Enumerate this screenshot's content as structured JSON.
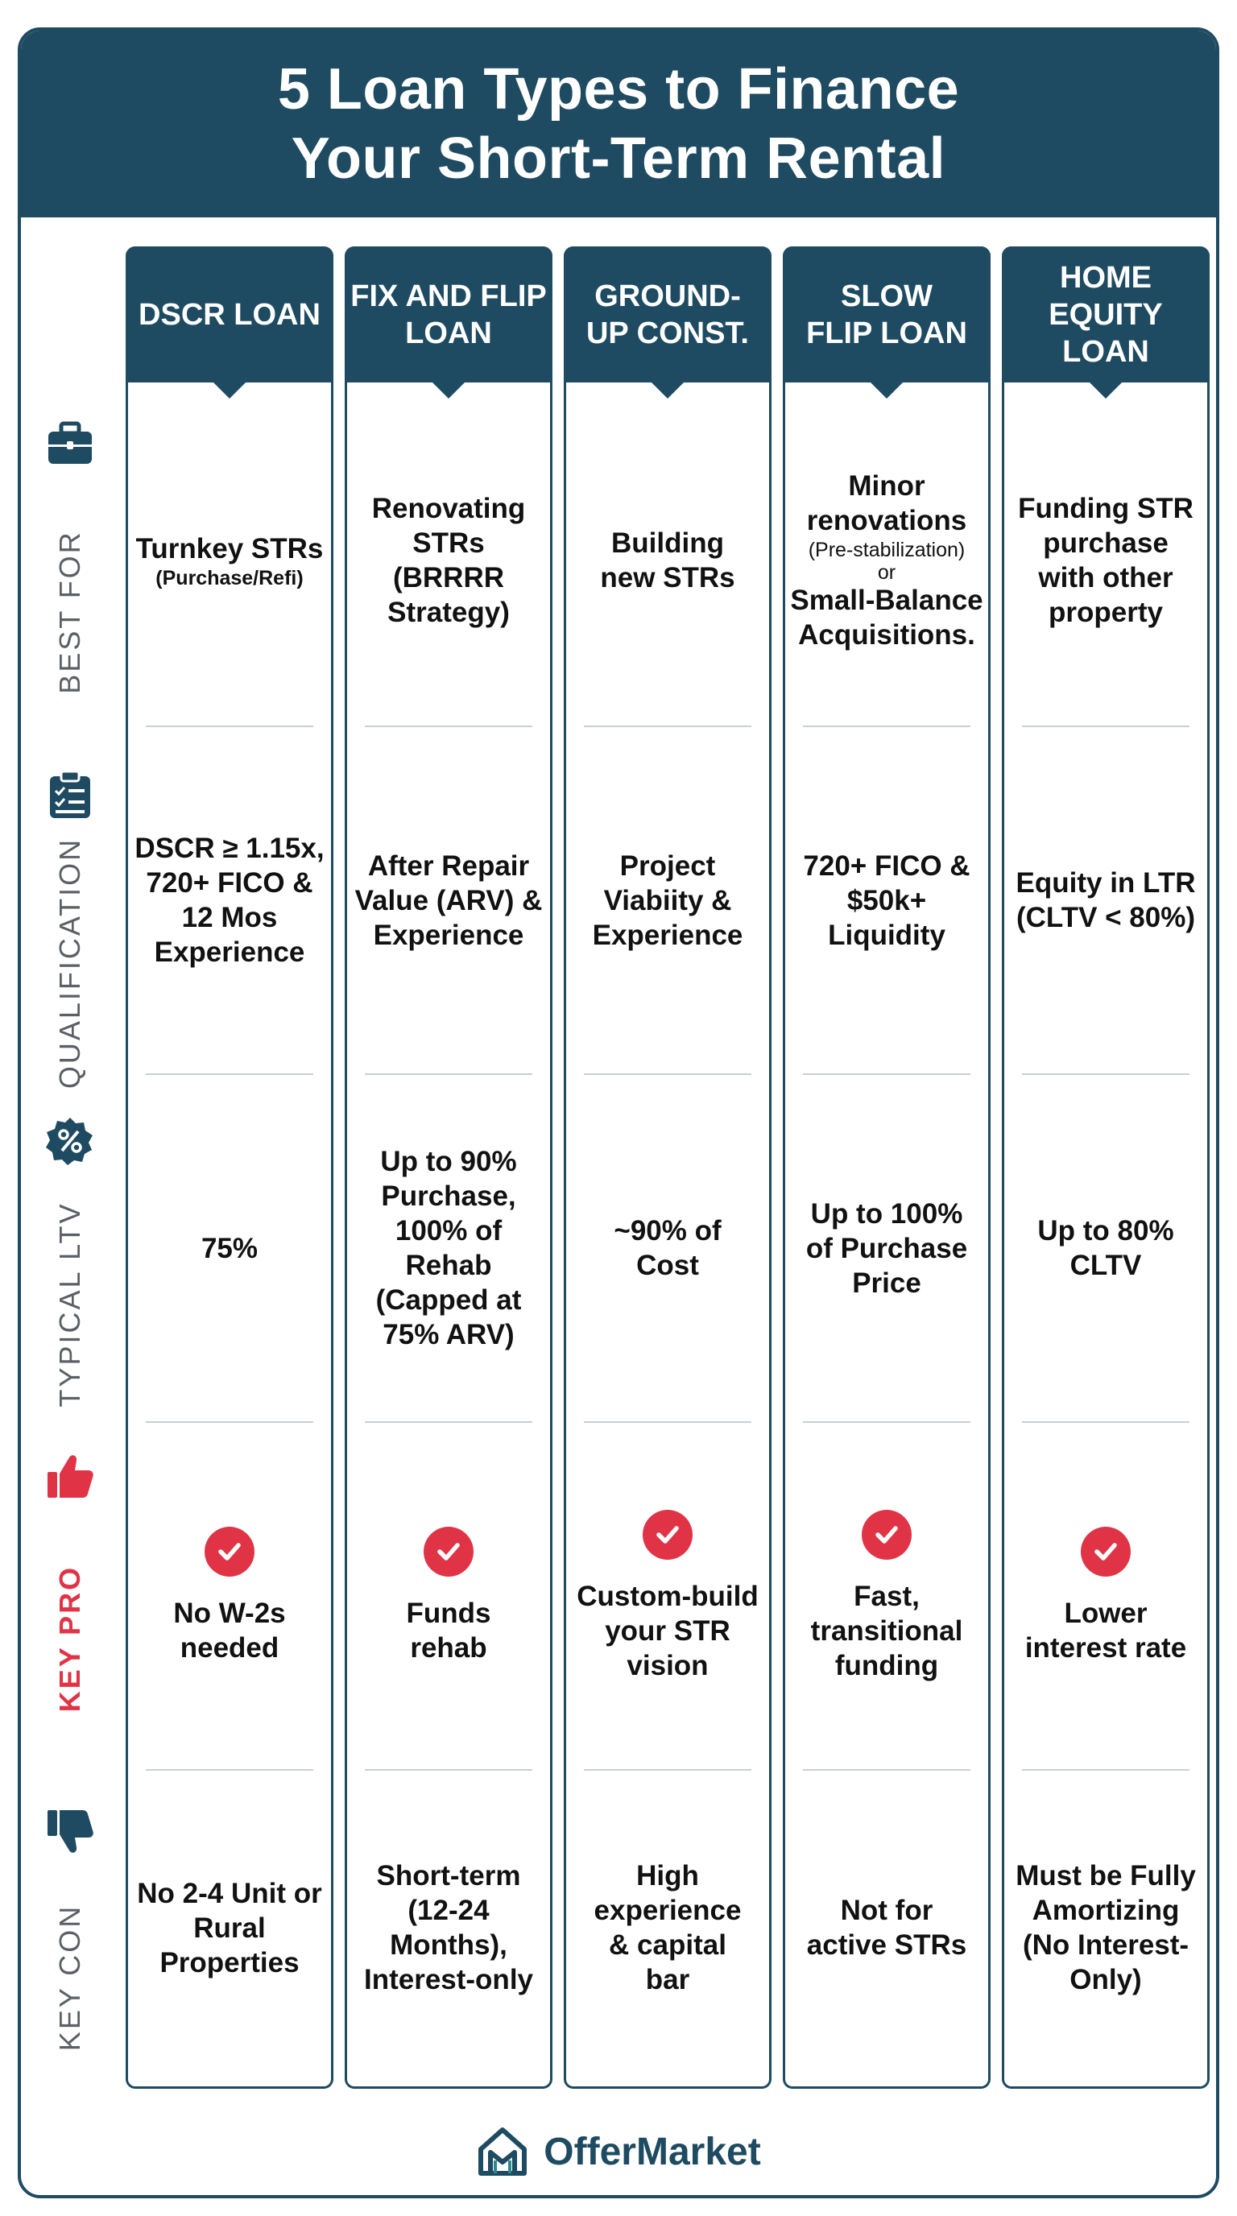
{
  "title": {
    "line1": "5 Loan Types to Finance",
    "line2": "Your Short-Term Rental"
  },
  "rows": [
    {
      "label": "BEST FOR",
      "icon": "briefcase-icon",
      "highlight": false
    },
    {
      "label": "QUALIFICATION",
      "icon": "clipboard-checklist-icon",
      "highlight": false
    },
    {
      "label": "TYPICAL LTV",
      "icon": "percent-badge-icon",
      "highlight": false
    },
    {
      "label": "KEY PRO",
      "icon": "thumbs-up-icon",
      "highlight": true
    },
    {
      "label": "KEY CON",
      "icon": "thumbs-down-icon",
      "highlight": false
    }
  ],
  "columns": [
    {
      "title": "DSCR LOAN",
      "best_for": {
        "main": "Turnkey STRs",
        "note": "(Purchase/Refi)"
      },
      "qualification": "DSCR ≥ 1.15x, 720+ FICO & 12 Mos Experience",
      "ltv": "75%",
      "pro": "No W-2s needed",
      "con": "No 2-4 Unit or Rural Properties"
    },
    {
      "title": "FIX AND FLIP LOAN",
      "best_for": {
        "main": "Renovating STRs (BRRRR Strategy)"
      },
      "qualification": "After Repair Value (ARV) & Experience",
      "ltv": "Up to 90% Purchase, 100% of Rehab (Capped at 75% ARV)",
      "pro": "Funds rehab",
      "con": "Short-term (12-24 Months), Interest-only"
    },
    {
      "title": "GROUND-UP CONST.",
      "best_for": {
        "main": "Building new STRs"
      },
      "qualification": "Project Viabiity & Experience",
      "ltv": "~90% of Cost",
      "pro": "Custom-build your STR vision",
      "con": "High experience & capital bar"
    },
    {
      "title": "SLOW FLIP LOAN",
      "best_for": {
        "main": "Minor renovations",
        "note": "(Pre-stabilization)",
        "or": "or",
        "main2": "Small-Balance Acquisitions."
      },
      "qualification": "720+ FICO & $50k+ Liquidity",
      "ltv": "Up to 100% of Purchase Price",
      "pro": "Fast, transitional funding",
      "con": "Not for active STRs"
    },
    {
      "title": "HOME EQUITY LOAN",
      "best_for": {
        "main": "Funding STR purchase with other property"
      },
      "qualification": "Equity in LTR (CLTV < 80%)",
      "ltv": "Up to 80% CLTV",
      "pro": "Lower interest rate",
      "con": "Must be Fully Amortizing (No Interest-Only)"
    }
  ],
  "footer": {
    "brand": "OfferMarket",
    "logo_icon": "offermarket-house-logo-icon"
  },
  "colors": {
    "navy": "#1e4b61",
    "red": "#e03446",
    "label_gray": "#5a6066",
    "divider": "#c9cfd3"
  }
}
